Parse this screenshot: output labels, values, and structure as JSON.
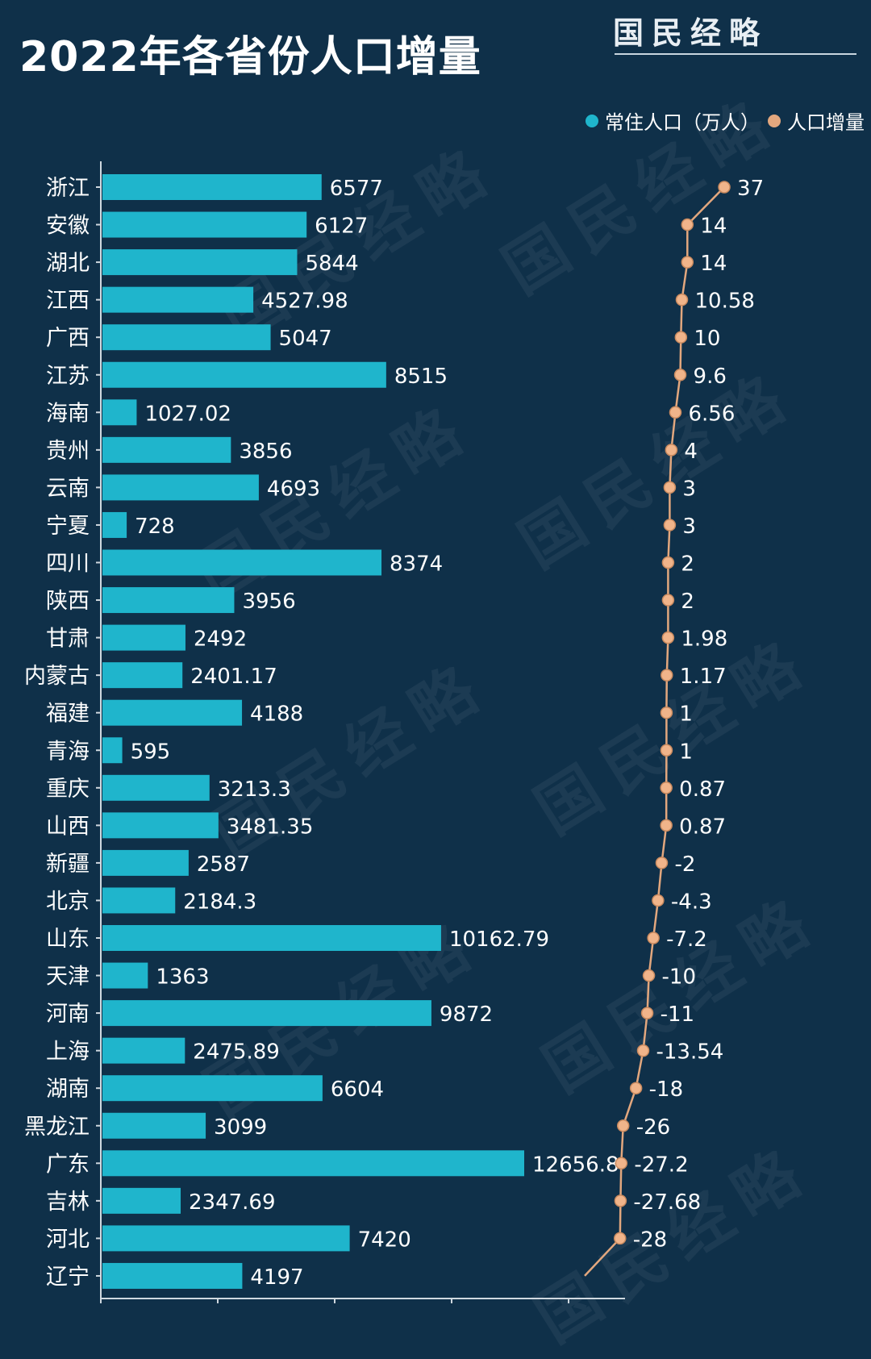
{
  "title": "2022年各省份人口增量",
  "brand": "国民经略",
  "watermark": "国民经略",
  "colors": {
    "background": "#0f3049",
    "bar": "#1fb5cc",
    "line": "#e2a77e",
    "point": "#f0b48a"
  },
  "chart_data": {
    "type": "bar",
    "orientation": "horizontal",
    "legend": "top-right",
    "categories": [
      "浙江",
      "安徽",
      "湖北",
      "江西",
      "广西",
      "江苏",
      "海南",
      "贵州",
      "云南",
      "宁夏",
      "四川",
      "陕西",
      "甘肃",
      "内蒙古",
      "福建",
      "青海",
      "重庆",
      "山西",
      "新疆",
      "北京",
      "山东",
      "天津",
      "河南",
      "上海",
      "湖南",
      "黑龙江",
      "广东",
      "吉林",
      "河北",
      "辽宁"
    ],
    "series": [
      {
        "name": "常住人口（万人）",
        "type": "bar",
        "values": [
          6577,
          6127,
          5844,
          4527.98,
          5047,
          8515,
          1027.02,
          3856,
          4693,
          728,
          8374,
          3956,
          2492,
          2401.17,
          4188,
          595,
          3213.3,
          3481.35,
          2587,
          2184.3,
          10162.79,
          1363,
          9872,
          2475.89,
          6604,
          3099,
          12656.8,
          2347.69,
          7420,
          4197
        ],
        "labels": [
          "6577",
          "6127",
          "5844",
          "4527.98",
          "5047",
          "8515",
          "1027.02",
          "3856",
          "4693",
          "728",
          "8374",
          "3956",
          "2492",
          "2401.17",
          "4188",
          "595",
          "3213.3",
          "3481.35",
          "2587",
          "2184.3",
          "10162.79",
          "1363",
          "9872",
          "2475.89",
          "6604",
          "3099",
          "12656.8",
          "2347.69",
          "7420",
          "4197"
        ]
      },
      {
        "name": "人口增量",
        "type": "line",
        "values": [
          37,
          14,
          14,
          10.58,
          10,
          9.6,
          6.56,
          4,
          3,
          3,
          2,
          2,
          1.98,
          1.17,
          1,
          1,
          0.87,
          0.87,
          -2,
          -4.3,
          -7.2,
          -10,
          -11,
          -13.54,
          -18,
          -26,
          -27.2,
          -27.68,
          -28,
          -50
        ],
        "labels": [
          "37",
          "14",
          "14",
          "10.58",
          "10",
          "9.6",
          "6.56",
          "4",
          "3",
          "3",
          "2",
          "2",
          "1.98",
          "1.17",
          "1",
          "1",
          "0.87",
          "0.87",
          "-2",
          "-4.3",
          "-7.2",
          "-10",
          "-11",
          "-13.54",
          "-18",
          "-26",
          "-27.2",
          "-27.68",
          "-28",
          ""
        ]
      }
    ],
    "xlim_bar": [
      0,
      14000
    ],
    "xlim_line": [
      -50,
      40
    ],
    "grid": false
  }
}
